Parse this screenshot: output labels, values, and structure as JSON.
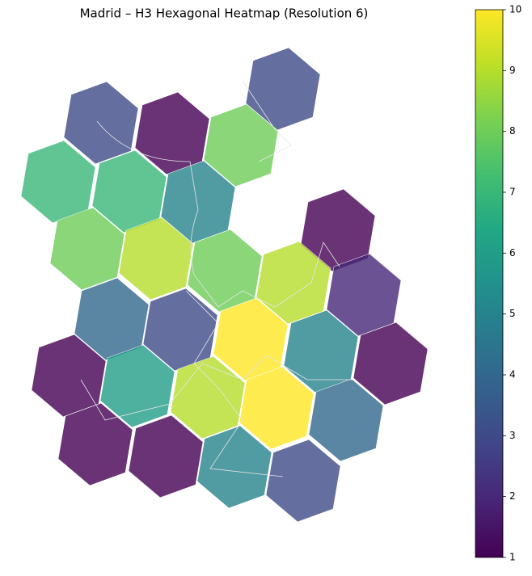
{
  "map": {
    "title": "Madrid – H3 Hexagonal Heatmap (Resolution 6)",
    "hexagons": [
      3,
      3,
      1,
      8,
      7,
      7,
      5,
      1,
      8,
      9,
      8,
      9,
      2,
      4,
      3,
      10,
      5,
      1,
      1,
      6,
      9,
      10,
      4,
      1,
      1,
      5,
      3
    ],
    "colorbar": {
      "lim": [
        1,
        10
      ],
      "ticks": [
        1,
        2,
        3,
        4,
        5,
        6,
        7,
        8,
        9,
        10
      ],
      "colors": [
        "#440154",
        "#482475",
        "#414487",
        "#355f8d",
        "#2a788e",
        "#21918c",
        "#22a884",
        "#44bf70",
        "#7ad151",
        "#bddf26",
        "#fde725"
      ]
    }
  }
}
